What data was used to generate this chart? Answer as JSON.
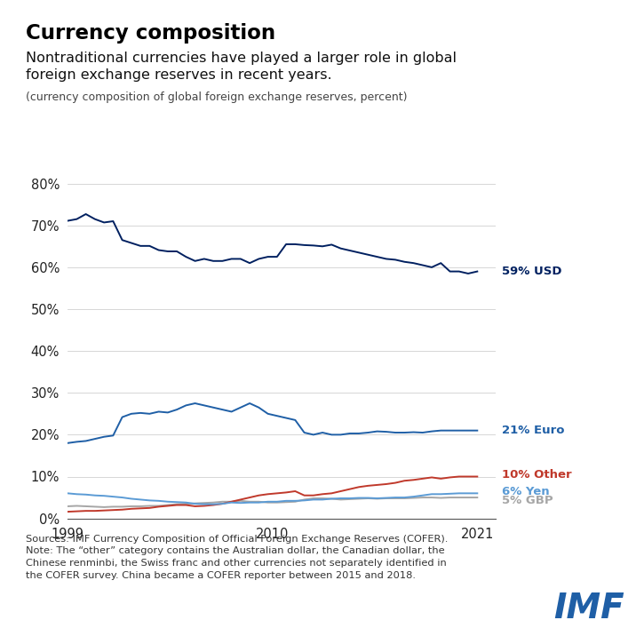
{
  "title": "Currency composition",
  "subtitle": "Nontraditional currencies have played a larger role in global\nforeign exchange reserves in recent years.",
  "subtitle2": "(currency composition of global foreign exchange reserves, percent)",
  "footnote": "Sources: IMF Currency Composition of Official Foreign Exchange Reserves (COFER).\nNote: The “other” category contains the Australian dollar, the Canadian dollar, the\nChinese renminbi, the Swiss franc and other currencies not separately identified in\nthe COFER survey. China became a COFER reporter between 2015 and 2018.",
  "background_color": "#ffffff",
  "colors": {
    "USD": "#002060",
    "Euro": "#1f5fa6",
    "Other": "#c0392b",
    "Yen": "#5b9bd5",
    "GBP": "#a6a6a6"
  },
  "labels": {
    "USD": "59% USD",
    "Euro": "21% Euro",
    "Other": "10% Other",
    "Yen": "6% Yen",
    "GBP": "5% GBP"
  },
  "ylim": [
    0,
    80
  ],
  "yticks": [
    0,
    10,
    20,
    30,
    40,
    50,
    60,
    70,
    80
  ],
  "xticks": [
    1999,
    2010,
    2021
  ],
  "USD": [
    71.1,
    71.5,
    72.7,
    71.5,
    70.7,
    71.0,
    66.5,
    65.8,
    65.1,
    65.1,
    64.1,
    63.8,
    63.8,
    62.5,
    61.5,
    62.0,
    61.5,
    61.5,
    62.0,
    62.0,
    61.0,
    62.0,
    62.5,
    62.5,
    65.5,
    65.5,
    65.3,
    65.2,
    65.0,
    65.4,
    64.5,
    64.0,
    63.5,
    63.0,
    62.5,
    62.0,
    61.8,
    61.3,
    61.0,
    60.5,
    60.0,
    61.0,
    59.0,
    59.0,
    58.5,
    59.0
  ],
  "Euro": [
    18.0,
    18.3,
    18.5,
    19.0,
    19.5,
    19.8,
    24.2,
    25.0,
    25.2,
    25.0,
    25.5,
    25.3,
    26.0,
    27.0,
    27.5,
    27.0,
    26.5,
    26.0,
    25.5,
    26.5,
    27.5,
    26.5,
    25.0,
    24.5,
    24.0,
    23.5,
    20.5,
    20.0,
    20.5,
    20.0,
    20.0,
    20.3,
    20.3,
    20.5,
    20.8,
    20.7,
    20.5,
    20.5,
    20.6,
    20.5,
    20.8,
    21.0,
    21.0,
    21.0,
    21.0,
    21.0
  ],
  "Other": [
    1.6,
    1.7,
    1.8,
    1.8,
    1.9,
    2.0,
    2.1,
    2.3,
    2.4,
    2.5,
    2.8,
    3.0,
    3.2,
    3.2,
    2.9,
    3.0,
    3.2,
    3.5,
    4.0,
    4.5,
    5.0,
    5.5,
    5.8,
    6.0,
    6.2,
    6.5,
    5.5,
    5.5,
    5.8,
    6.0,
    6.5,
    7.0,
    7.5,
    7.8,
    8.0,
    8.2,
    8.5,
    9.0,
    9.2,
    9.5,
    9.8,
    9.5,
    9.8,
    10.0,
    10.0,
    10.0
  ],
  "Yen": [
    6.0,
    5.8,
    5.7,
    5.5,
    5.4,
    5.2,
    5.0,
    4.7,
    4.5,
    4.3,
    4.2,
    4.0,
    3.9,
    3.8,
    3.5,
    3.4,
    3.4,
    3.5,
    3.8,
    3.7,
    3.8,
    3.8,
    4.0,
    4.0,
    4.2,
    4.2,
    4.3,
    4.5,
    4.5,
    4.7,
    4.8,
    4.8,
    4.9,
    4.9,
    4.8,
    4.9,
    5.0,
    5.0,
    5.2,
    5.5,
    5.8,
    5.8,
    5.9,
    6.0,
    6.0,
    6.0
  ],
  "GBP": [
    2.9,
    3.0,
    2.9,
    2.8,
    2.7,
    2.8,
    2.8,
    2.9,
    2.9,
    3.0,
    3.0,
    3.2,
    3.4,
    3.5,
    3.6,
    3.7,
    3.8,
    4.0,
    4.0,
    4.2,
    4.0,
    4.0,
    3.8,
    3.8,
    3.9,
    4.0,
    4.5,
    4.8,
    4.8,
    4.7,
    4.5,
    4.6,
    4.7,
    4.8,
    4.7,
    4.8,
    4.8,
    4.8,
    4.9,
    5.0,
    5.0,
    4.9,
    5.0,
    5.0,
    5.0,
    5.0
  ],
  "years_count": 46,
  "start_year": 1999,
  "end_year": 2021
}
